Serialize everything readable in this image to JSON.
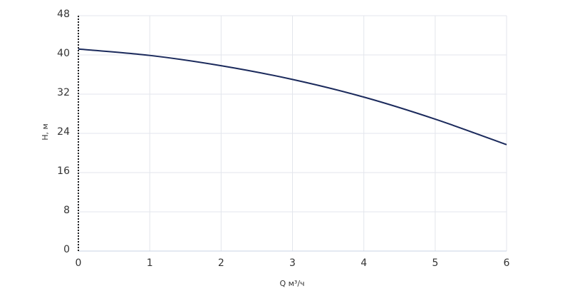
{
  "chart_data": {
    "type": "line",
    "x_label": "Q м³/ч",
    "y_label": "H, м",
    "x": [
      0,
      1,
      2,
      3,
      4,
      5,
      6
    ],
    "series": [
      {
        "color": "#1b2a5c",
        "values": [
          41.2,
          39.9,
          37.8,
          35.0,
          31.4,
          26.9,
          21.7
        ]
      }
    ],
    "xlim": [
      0,
      6
    ],
    "xticks": [
      0,
      1,
      2,
      3,
      4,
      5,
      6
    ],
    "ylim": [
      0,
      48
    ],
    "yticks": [
      0,
      8,
      16,
      24,
      32,
      40,
      48
    ],
    "grid": true
  }
}
